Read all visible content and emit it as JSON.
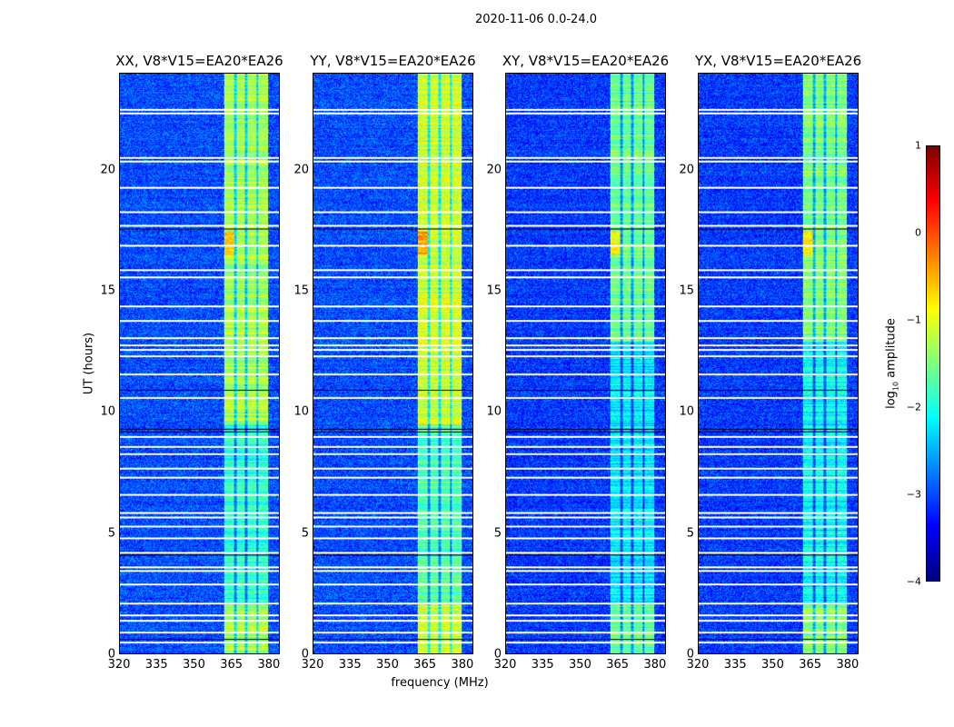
{
  "chart_data": {
    "type": "heatmap",
    "suptitle": "2020-11-06 0.0-24.0",
    "xlabel": "frequency (MHz)",
    "ylabel": "UT (hours)",
    "xlim": [
      320,
      384.4
    ],
    "ylim": [
      0,
      24
    ],
    "xticks": [
      "320",
      "335",
      "350",
      "365",
      "380"
    ],
    "xtick_values": [
      320,
      335,
      350,
      365,
      380
    ],
    "yticks": [
      "0",
      "5",
      "10",
      "15",
      "20"
    ],
    "ytick_values": [
      0,
      5,
      10,
      15,
      20
    ],
    "colormap": "jet",
    "panels": [
      {
        "title": "XX, V8*V15=EA20*EA26",
        "band_level": -1.3,
        "bg_level": -3.0
      },
      {
        "title": "YY, V8*V15=EA20*EA26",
        "band_level": -1.1,
        "bg_level": -3.0
      },
      {
        "title": "XY, V8*V15=EA20*EA26",
        "band_level": -1.6,
        "bg_level": -3.1
      },
      {
        "title": "YX, V8*V15=EA20*EA26",
        "band_level": -1.5,
        "bg_level": -3.1
      }
    ],
    "bright_band_mhz": [
      362,
      380
    ],
    "band_gaps_mhz": [
      366.5,
      371,
      375.5
    ],
    "flagged_hours": [
      22.4,
      22.55,
      20.55,
      20.4,
      19.3,
      18.3,
      17.75,
      16.9,
      15.9,
      15.6,
      14.4,
      13.8,
      13.1,
      12.8,
      12.6,
      12.35,
      11.6,
      10.6,
      9.0,
      8.6,
      8.3,
      7.7,
      7.3,
      6.6,
      5.85,
      5.65,
      5.3,
      4.8,
      4.2,
      3.6,
      3.45,
      2.9,
      2.1,
      1.6,
      1.4,
      0.9,
      0.5
    ],
    "dark_hours": [
      9.2,
      9.3,
      10.9,
      17.6,
      0.6,
      4.1
    ],
    "colorbar": {
      "label": "log10 amplitude",
      "label_main": "log",
      "label_sub": "10",
      "label_tail": " amplitude",
      "range": [
        -4,
        1
      ],
      "ticks": [
        "1",
        "0",
        "−1",
        "−2",
        "−3",
        "−4"
      ],
      "tick_values": [
        1,
        0,
        -1,
        -2,
        -3,
        -4
      ]
    }
  }
}
